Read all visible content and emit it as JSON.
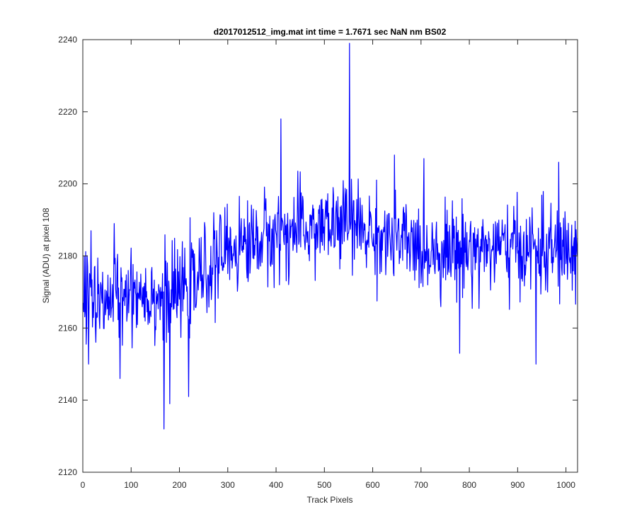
{
  "chart_data": {
    "type": "line",
    "title": "d2017012512_img.mat int time = 1.7671 sec  NaN nm BS02",
    "xlabel": "Track Pixels",
    "ylabel": "Signal (ADU) at pixel 108",
    "xlim": [
      0,
      1024
    ],
    "ylim": [
      2120,
      2240
    ],
    "xticks": [
      0,
      100,
      200,
      300,
      400,
      500,
      600,
      700,
      800,
      900,
      1000
    ],
    "yticks": [
      2120,
      2140,
      2160,
      2180,
      2200,
      2220,
      2240
    ],
    "grid": false,
    "series": [
      {
        "name": "signal",
        "color": "#0000ff",
        "baseline": {
          "x": [
            0,
            100,
            170,
            230,
            300,
            400,
            500,
            550,
            600,
            700,
            800,
            900,
            1000,
            1024
          ],
          "y": [
            2167,
            2171,
            2168,
            2172,
            2182,
            2186,
            2188,
            2189,
            2186,
            2182,
            2182,
            2182,
            2181,
            2180
          ]
        },
        "noise_amplitude": 8,
        "notable_points": [
          {
            "x": 1,
            "y": 2167
          },
          {
            "x": 12,
            "y": 2150
          },
          {
            "x": 17,
            "y": 2187
          },
          {
            "x": 65,
            "y": 2189
          },
          {
            "x": 77,
            "y": 2146
          },
          {
            "x": 168,
            "y": 2132
          },
          {
            "x": 180,
            "y": 2139
          },
          {
            "x": 219,
            "y": 2141
          },
          {
            "x": 410,
            "y": 2218
          },
          {
            "x": 552,
            "y": 2239
          },
          {
            "x": 645,
            "y": 2208
          },
          {
            "x": 780,
            "y": 2153
          },
          {
            "x": 938,
            "y": 2150
          },
          {
            "x": 985,
            "y": 2206
          },
          {
            "x": 1024,
            "y": 2185
          }
        ]
      }
    ]
  }
}
